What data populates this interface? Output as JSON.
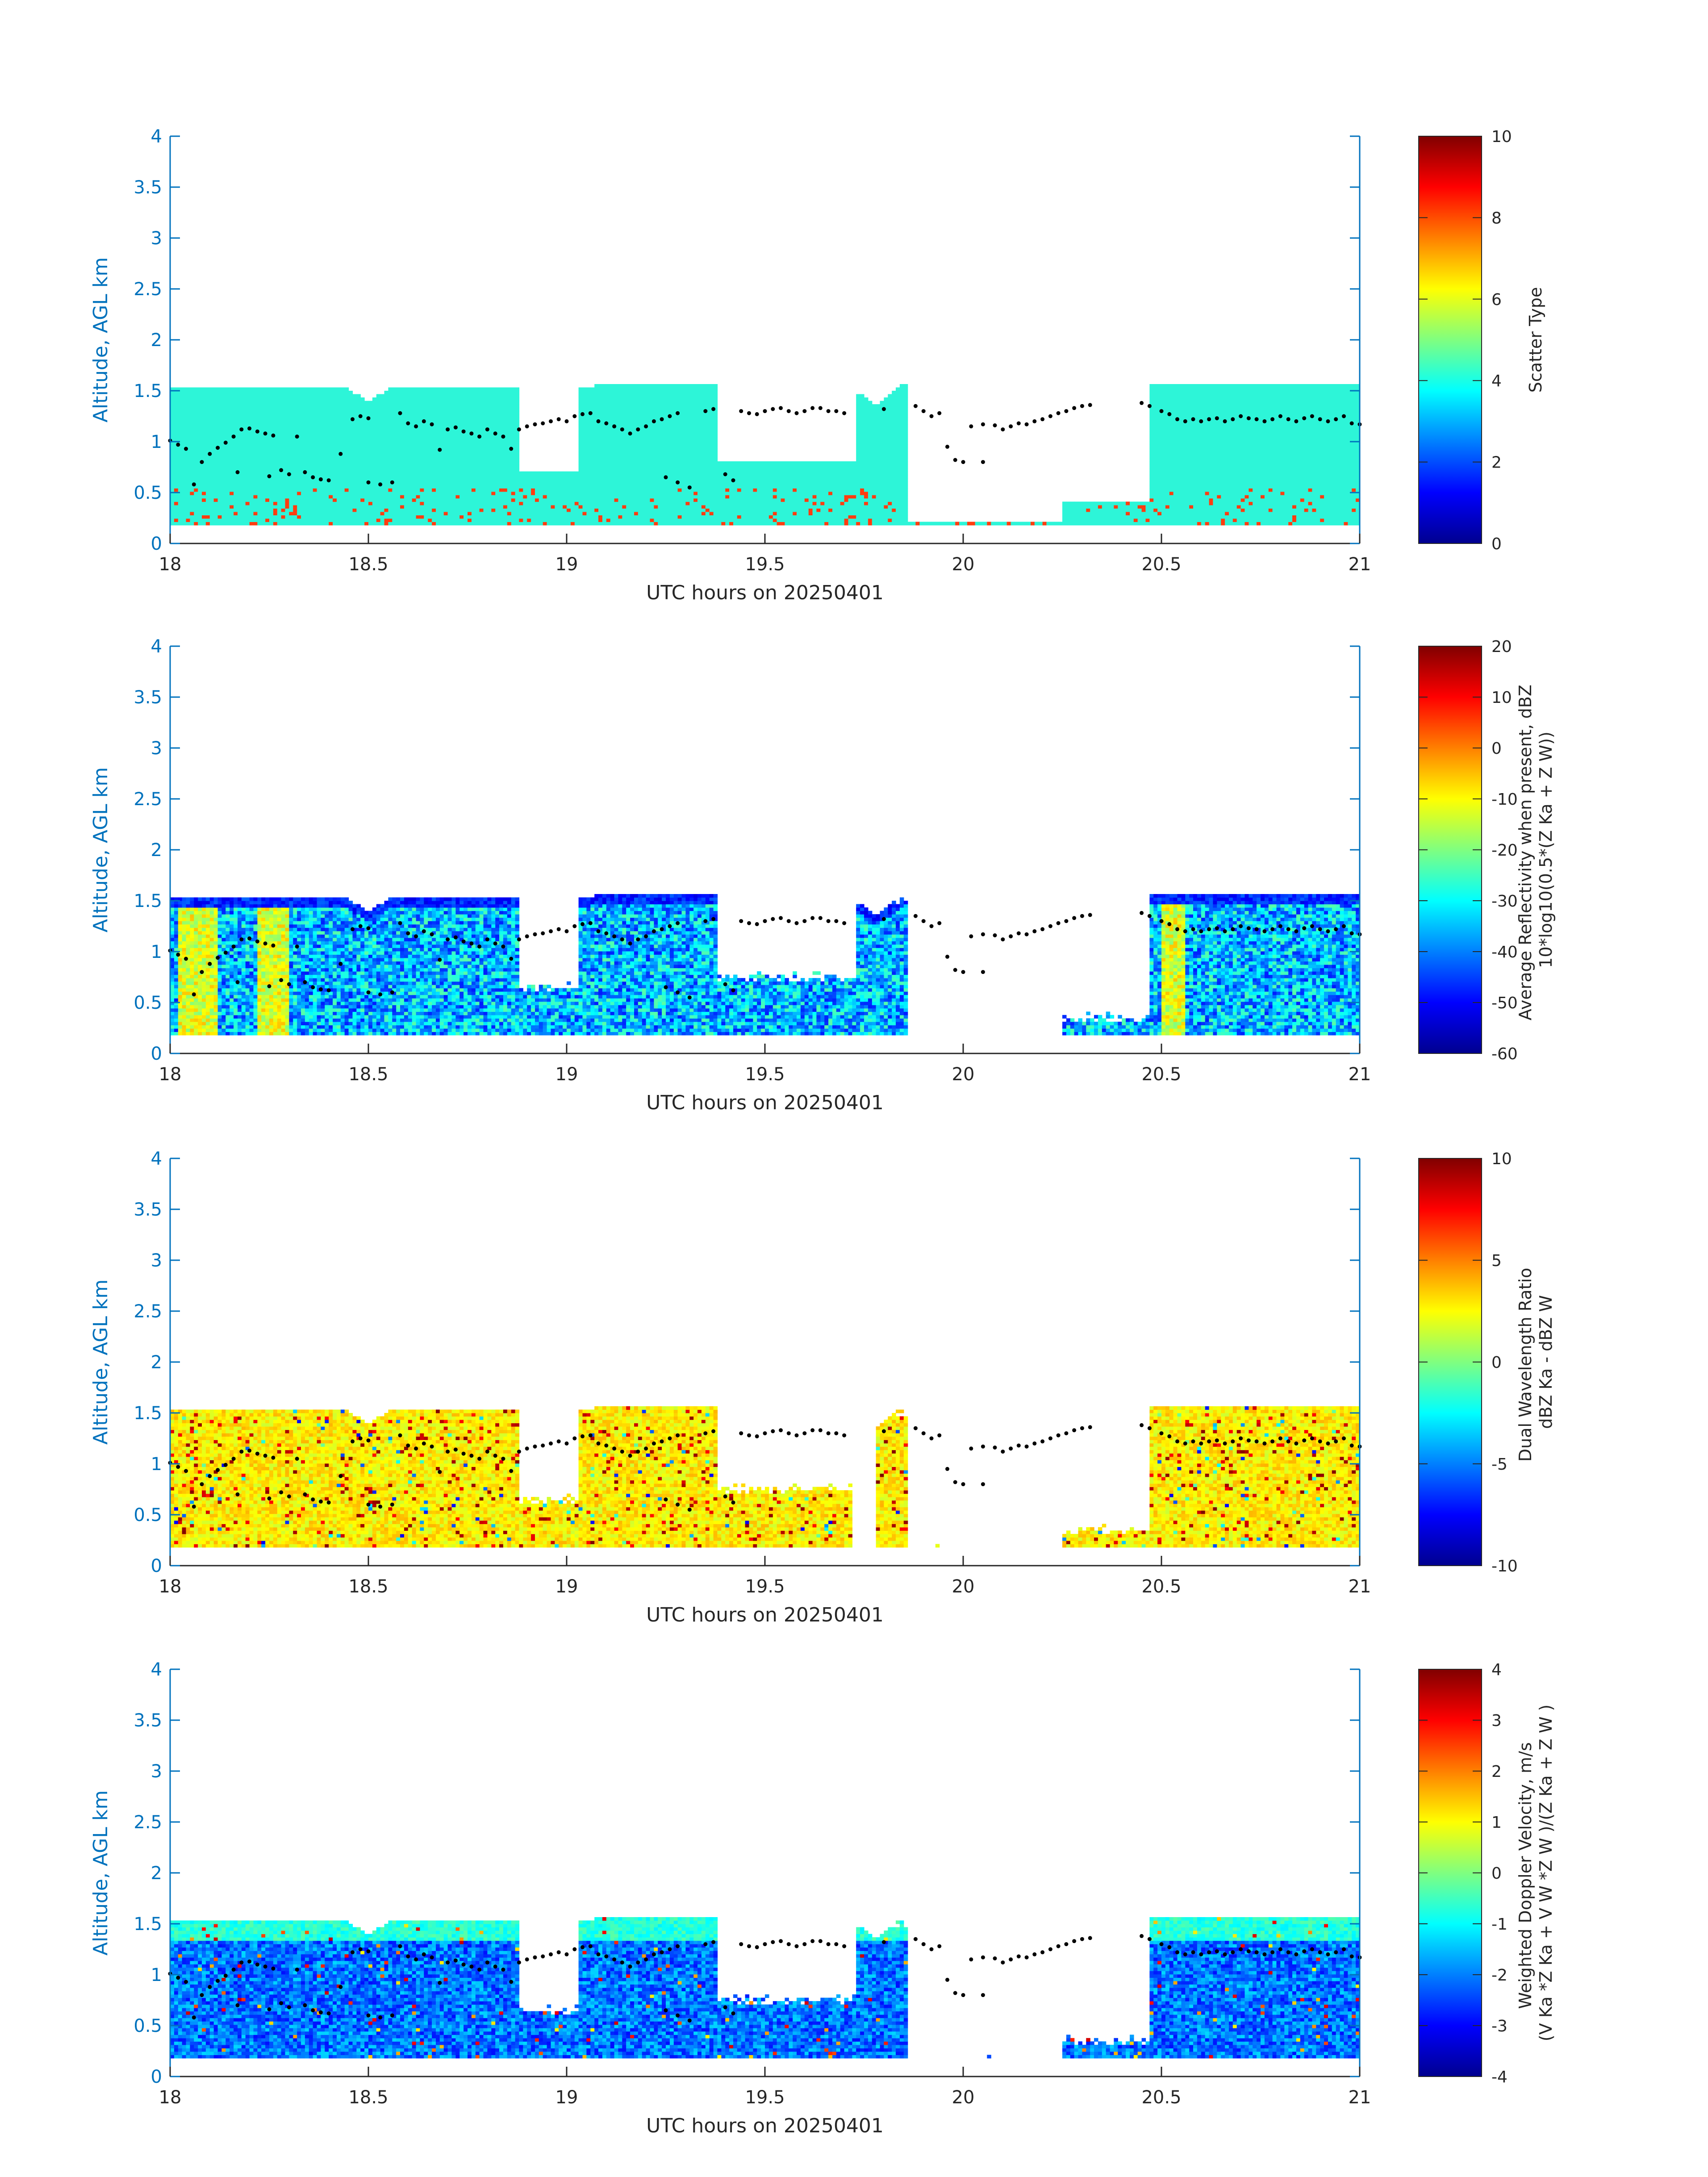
{
  "figure": {
    "xlabel": "UTC hours on 20250401",
    "ylabel": "Altitude, AGL km"
  },
  "chart_data": [
    {
      "type": "heatmap",
      "title": "",
      "xlabel": "UTC hours on 20250401",
      "ylabel": "Altitude, AGL km",
      "xlim": [
        18,
        21
      ],
      "ylim": [
        0,
        4
      ],
      "x_ticks": [
        "18",
        "18.5",
        "19",
        "19.5",
        "20",
        "20.5",
        "21"
      ],
      "y_ticks": [
        "0",
        "0.5",
        "1",
        "1.5",
        "2",
        "2.5",
        "3",
        "3.5",
        "4"
      ],
      "colorbar_label": [
        "Scatter Type"
      ],
      "colorbar_ticks": [
        "0",
        "2",
        "4",
        "6",
        "8",
        "10"
      ],
      "clim": [
        0,
        10
      ],
      "colormap": "jet",
      "field": "scatter_type",
      "colors": {
        "dominant": "#2df5d8",
        "secondary": "#ff3d10"
      }
    },
    {
      "type": "heatmap",
      "title": "",
      "xlabel": "UTC hours on 20250401",
      "ylabel": "Altitude, AGL km",
      "xlim": [
        18,
        21
      ],
      "ylim": [
        0,
        4
      ],
      "x_ticks": [
        "18",
        "18.5",
        "19",
        "19.5",
        "20",
        "20.5",
        "21"
      ],
      "y_ticks": [
        "0",
        "0.5",
        "1",
        "1.5",
        "2",
        "2.5",
        "3",
        "3.5",
        "4"
      ],
      "colorbar_label": [
        "Average Reflectivity when present, dBZ",
        "10*log10(0.5*(Z Ka + Z W))"
      ],
      "colorbar_ticks": [
        "-60",
        "-50",
        "-40",
        "-30",
        "-20",
        "-10",
        "0",
        "10",
        "20"
      ],
      "clim": [
        -60,
        20
      ],
      "colormap": "jet",
      "field": "reflectivity"
    },
    {
      "type": "heatmap",
      "title": "",
      "xlabel": "UTC hours on 20250401",
      "ylabel": "Altitude, AGL km",
      "xlim": [
        18,
        21
      ],
      "ylim": [
        0,
        4
      ],
      "x_ticks": [
        "18",
        "18.5",
        "19",
        "19.5",
        "20",
        "20.5",
        "21"
      ],
      "y_ticks": [
        "0",
        "0.5",
        "1",
        "1.5",
        "2",
        "2.5",
        "3",
        "3.5",
        "4"
      ],
      "colorbar_label": [
        "Dual Wavelength Ratio",
        "dBZ Ka - dBZ W"
      ],
      "colorbar_ticks": [
        "-10",
        "-5",
        "0",
        "5",
        "10"
      ],
      "clim": [
        -10,
        10
      ],
      "colormap": "jet",
      "field": "dwr"
    },
    {
      "type": "heatmap",
      "title": "",
      "xlabel": "UTC hours on 20250401",
      "ylabel": "Altitude, AGL km",
      "xlim": [
        18,
        21
      ],
      "ylim": [
        0,
        4
      ],
      "x_ticks": [
        "18",
        "18.5",
        "19",
        "19.5",
        "20",
        "20.5",
        "21"
      ],
      "y_ticks": [
        "0",
        "0.5",
        "1",
        "1.5",
        "2",
        "2.5",
        "3",
        "3.5",
        "4"
      ],
      "colorbar_label": [
        "Weighted Doppler Velocity, m/s",
        "(V Ka *Z Ka + V W *Z W )/(Z Ka + Z W )"
      ],
      "colorbar_ticks": [
        "-4",
        "-3",
        "-2",
        "-1",
        "0",
        "1",
        "2",
        "3",
        "4"
      ],
      "clim": [
        -4,
        4
      ],
      "colormap": "jet",
      "field": "doppler_velocity"
    }
  ],
  "cloud_top_km": [
    [
      18.0,
      1.5
    ],
    [
      18.45,
      1.5
    ],
    [
      18.5,
      1.38
    ],
    [
      18.55,
      1.5
    ],
    [
      19.0,
      1.5
    ],
    [
      19.1,
      1.55
    ],
    [
      19.4,
      1.55
    ],
    [
      19.72,
      1.5
    ],
    [
      19.78,
      1.35
    ],
    [
      19.85,
      1.55
    ],
    [
      20.0,
      1.62
    ],
    [
      20.2,
      1.63
    ],
    [
      20.33,
      1.55
    ],
    [
      20.4,
      1.32
    ],
    [
      20.45,
      1.55
    ],
    [
      20.7,
      1.55
    ],
    [
      21.0,
      1.55
    ]
  ],
  "cloud_base_km": 0.18,
  "gaps": [
    {
      "x0": 19.38,
      "x1": 19.73,
      "base": 0.8
    },
    {
      "x0": 19.73,
      "x1": 19.86,
      "base": 1.55
    },
    {
      "x0": 19.86,
      "x1": 20.25,
      "base": 0.2
    },
    {
      "x0": 20.25,
      "x1": 20.47,
      "base": 0.4
    },
    {
      "x0": 18.88,
      "x1": 19.03,
      "base": 0.7
    }
  ],
  "cloud_base_points": [
    [
      18.0,
      1.01
    ],
    [
      18.02,
      0.97
    ],
    [
      18.04,
      0.93
    ],
    [
      18.06,
      0.58
    ],
    [
      18.08,
      0.8
    ],
    [
      18.1,
      0.88
    ],
    [
      18.12,
      0.94
    ],
    [
      18.14,
      0.99
    ],
    [
      18.16,
      1.05
    ],
    [
      18.17,
      0.7
    ],
    [
      18.18,
      1.12
    ],
    [
      18.2,
      1.13
    ],
    [
      18.22,
      1.1
    ],
    [
      18.24,
      1.08
    ],
    [
      18.26,
      1.06
    ],
    [
      18.25,
      0.66
    ],
    [
      18.28,
      0.72
    ],
    [
      18.3,
      0.68
    ],
    [
      18.32,
      1.05
    ],
    [
      18.34,
      0.7
    ],
    [
      18.36,
      0.65
    ],
    [
      18.38,
      0.63
    ],
    [
      18.4,
      0.62
    ],
    [
      18.43,
      0.88
    ],
    [
      18.46,
      1.22
    ],
    [
      18.48,
      1.25
    ],
    [
      18.5,
      1.23
    ],
    [
      18.5,
      0.6
    ],
    [
      18.53,
      0.58
    ],
    [
      18.56,
      0.6
    ],
    [
      18.58,
      1.28
    ],
    [
      18.6,
      1.18
    ],
    [
      18.62,
      1.15
    ],
    [
      18.64,
      1.2
    ],
    [
      18.66,
      1.17
    ],
    [
      18.68,
      0.92
    ],
    [
      18.7,
      1.12
    ],
    [
      18.72,
      1.14
    ],
    [
      18.74,
      1.1
    ],
    [
      18.76,
      1.08
    ],
    [
      18.78,
      1.05
    ],
    [
      18.8,
      1.12
    ],
    [
      18.82,
      1.08
    ],
    [
      18.84,
      1.05
    ],
    [
      18.86,
      0.93
    ],
    [
      18.88,
      1.12
    ],
    [
      18.9,
      1.15
    ],
    [
      18.92,
      1.17
    ],
    [
      18.94,
      1.18
    ],
    [
      18.96,
      1.2
    ],
    [
      18.98,
      1.22
    ],
    [
      19.0,
      1.2
    ],
    [
      19.02,
      1.25
    ],
    [
      19.04,
      1.27
    ],
    [
      19.06,
      1.28
    ],
    [
      19.08,
      1.2
    ],
    [
      19.1,
      1.18
    ],
    [
      19.12,
      1.15
    ],
    [
      19.14,
      1.12
    ],
    [
      19.16,
      1.08
    ],
    [
      19.18,
      1.12
    ],
    [
      19.2,
      1.15
    ],
    [
      19.22,
      1.2
    ],
    [
      19.24,
      1.22
    ],
    [
      19.26,
      1.25
    ],
    [
      19.28,
      1.28
    ],
    [
      19.25,
      0.65
    ],
    [
      19.28,
      0.6
    ],
    [
      19.31,
      0.55
    ],
    [
      19.35,
      1.3
    ],
    [
      19.37,
      1.32
    ],
    [
      19.4,
      0.68
    ],
    [
      19.42,
      0.62
    ],
    [
      19.44,
      1.3
    ],
    [
      19.46,
      1.28
    ],
    [
      19.48,
      1.27
    ],
    [
      19.5,
      1.3
    ],
    [
      19.52,
      1.32
    ],
    [
      19.54,
      1.33
    ],
    [
      19.56,
      1.3
    ],
    [
      19.58,
      1.28
    ],
    [
      19.6,
      1.3
    ],
    [
      19.62,
      1.33
    ],
    [
      19.64,
      1.33
    ],
    [
      19.66,
      1.3
    ],
    [
      19.68,
      1.3
    ],
    [
      19.7,
      1.28
    ],
    [
      19.8,
      1.32
    ],
    [
      19.88,
      1.35
    ],
    [
      19.9,
      1.3
    ],
    [
      19.92,
      1.25
    ],
    [
      19.94,
      1.28
    ],
    [
      19.96,
      0.95
    ],
    [
      19.98,
      0.82
    ],
    [
      20.0,
      0.8
    ],
    [
      20.05,
      0.8
    ],
    [
      20.02,
      1.15
    ],
    [
      20.05,
      1.17
    ],
    [
      20.08,
      1.16
    ],
    [
      20.1,
      1.12
    ],
    [
      20.12,
      1.15
    ],
    [
      20.14,
      1.18
    ],
    [
      20.16,
      1.17
    ],
    [
      20.18,
      1.2
    ],
    [
      20.2,
      1.22
    ],
    [
      20.22,
      1.25
    ],
    [
      20.24,
      1.28
    ],
    [
      20.26,
      1.3
    ],
    [
      20.28,
      1.33
    ],
    [
      20.3,
      1.35
    ],
    [
      20.32,
      1.36
    ],
    [
      20.45,
      1.38
    ],
    [
      20.47,
      1.35
    ],
    [
      20.5,
      1.3
    ],
    [
      20.52,
      1.27
    ],
    [
      20.54,
      1.22
    ],
    [
      20.56,
      1.2
    ],
    [
      20.58,
      1.22
    ],
    [
      20.6,
      1.2
    ],
    [
      20.62,
      1.22
    ],
    [
      20.64,
      1.23
    ],
    [
      20.66,
      1.2
    ],
    [
      20.68,
      1.22
    ],
    [
      20.7,
      1.25
    ],
    [
      20.72,
      1.23
    ],
    [
      20.74,
      1.22
    ],
    [
      20.76,
      1.2
    ],
    [
      20.78,
      1.22
    ],
    [
      20.8,
      1.25
    ],
    [
      20.82,
      1.22
    ],
    [
      20.84,
      1.2
    ],
    [
      20.86,
      1.23
    ],
    [
      20.88,
      1.25
    ],
    [
      20.9,
      1.22
    ],
    [
      20.92,
      1.2
    ],
    [
      20.94,
      1.22
    ],
    [
      20.96,
      1.25
    ],
    [
      20.98,
      1.18
    ],
    [
      21.0,
      1.17
    ]
  ],
  "colors": {
    "axis_y": "#0072BD",
    "axis_text": "#262626",
    "dots": "#000000"
  }
}
